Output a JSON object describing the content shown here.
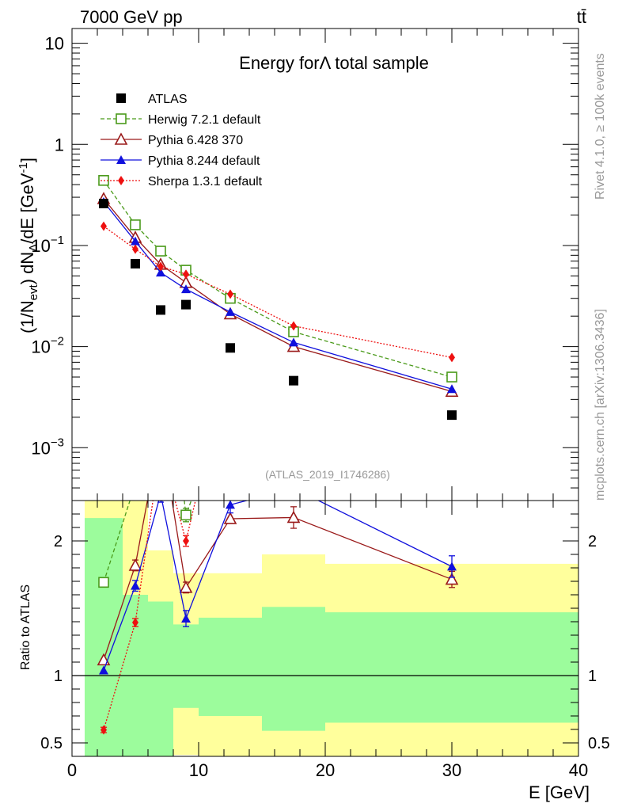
{
  "header": {
    "energy_label": "7000 GeV pp",
    "process_label": "tt̄"
  },
  "side_labels": {
    "rivet": "Rivet 4.1.0, ≥ 100k events",
    "source": "mcplots.cern.ch [arXiv:1306.3436]"
  },
  "chart_data": {
    "type": "scatter",
    "title": "Energy for Λ total sample",
    "title_prefix": "Energy for",
    "title_symbol": "Λ",
    "title_suffix": " total sample",
    "analysis_tag": "(ATLAS_2019_I1746286)",
    "xlabel": "E [GeV]",
    "ylabel_parts": {
      "pre": "(1/N",
      "sub1": "evt",
      "mid": ") dN",
      "sub2": "Λ",
      "post": "/dE [GeV",
      "sup": "-1",
      "end": "]"
    },
    "ratio_ylabel": "Ratio to ATLAS",
    "xlim": [
      0,
      40
    ],
    "ylim": [
      0.0003,
      14
    ],
    "ratio_ylim": [
      0.4,
      2.3
    ],
    "x_ticks": [
      0,
      10,
      20,
      30,
      40
    ],
    "y_ticks": [
      {
        "value": 10,
        "label": "10"
      },
      {
        "value": 1,
        "label": "1"
      },
      {
        "value": 0.1,
        "base": "10",
        "exp": "−1"
      },
      {
        "value": 0.01,
        "base": "10",
        "exp": "−2"
      },
      {
        "value": 0.001,
        "base": "10",
        "exp": "−3"
      }
    ],
    "ratio_ticks": [
      {
        "value": 0.5,
        "label": "0.5"
      },
      {
        "value": 1,
        "label": "1"
      },
      {
        "value": 2,
        "label": "2"
      }
    ],
    "bins": [
      {
        "lo": 1,
        "hi": 4,
        "x": 2.5
      },
      {
        "lo": 4,
        "hi": 6,
        "x": 5
      },
      {
        "lo": 6,
        "hi": 8,
        "x": 7
      },
      {
        "lo": 8,
        "hi": 10,
        "x": 9
      },
      {
        "lo": 10,
        "hi": 15,
        "x": 12.5
      },
      {
        "lo": 15,
        "hi": 20,
        "x": 17.5
      },
      {
        "lo": 20,
        "hi": 40,
        "x": 30
      }
    ],
    "data_series": {
      "name": "ATLAS",
      "values": [
        0.26,
        0.066,
        0.023,
        0.026,
        0.0097,
        0.0046,
        0.0021
      ]
    },
    "series": [
      {
        "name": "Herwig 7.2.1 default",
        "color": "#4a9a1a",
        "marker": "open-square",
        "dash": "5,3",
        "values": [
          0.44,
          0.16,
          0.088,
          0.057,
          0.03,
          0.014,
          0.005
        ],
        "ratio_errors": [
          0,
          0,
          0,
          0.05,
          0,
          0,
          0.05
        ]
      },
      {
        "name": "Pythia 6.428 370",
        "color": "#9a1a1a",
        "marker": "open-triangle",
        "dash": "",
        "values": [
          0.29,
          0.12,
          0.065,
          0.043,
          0.021,
          0.01,
          0.0036
        ],
        "ratio_errors": [
          0,
          0.04,
          0,
          0.04,
          0,
          0.08,
          0.06
        ]
      },
      {
        "name": "Pythia 8.244 default",
        "color": "#1010dd",
        "marker": "filled-triangle",
        "dash": "",
        "values": [
          0.27,
          0.11,
          0.054,
          0.037,
          0.022,
          0.011,
          0.0038
        ],
        "ratio_errors": [
          0,
          0.04,
          0.06,
          0.06,
          0.06,
          0.08,
          0.08
        ]
      },
      {
        "name": "Sherpa 1.3.1 default",
        "color": "#ee1010",
        "marker": "filled-diamond",
        "dash": "2,2",
        "values": [
          0.155,
          0.092,
          0.062,
          0.052,
          0.033,
          0.016,
          0.0078
        ],
        "ratio_errors": [
          0.02,
          0.03,
          0,
          0.04,
          0,
          0,
          0
        ]
      }
    ],
    "band_inner": [
      {
        "lo": 1,
        "hi": 4,
        "low": 0.37,
        "high": 2.17
      },
      {
        "lo": 4,
        "hi": 6,
        "low": 0.37,
        "high": 1.6
      },
      {
        "lo": 6,
        "hi": 8,
        "low": 0.37,
        "high": 1.55
      },
      {
        "lo": 8,
        "hi": 10,
        "low": 0.76,
        "high": 1.38
      },
      {
        "lo": 10,
        "hi": 15,
        "low": 0.7,
        "high": 1.43
      },
      {
        "lo": 15,
        "hi": 20,
        "low": 0.59,
        "high": 1.51
      },
      {
        "lo": 20,
        "hi": 40,
        "low": 0.65,
        "high": 1.47
      }
    ],
    "band_outer": [
      {
        "lo": 1,
        "hi": 4,
        "low": 0.37,
        "high": 2.5
      },
      {
        "lo": 4,
        "hi": 6,
        "low": 0.49,
        "high": 2.5
      },
      {
        "lo": 6,
        "hi": 8,
        "low": 0.55,
        "high": 1.93
      },
      {
        "lo": 8,
        "hi": 10,
        "low": 0.41,
        "high": 1.76
      },
      {
        "lo": 10,
        "hi": 15,
        "low": 0.37,
        "high": 1.76
      },
      {
        "lo": 15,
        "hi": 20,
        "low": 0.37,
        "high": 1.9
      },
      {
        "lo": 20,
        "hi": 40,
        "low": 0.37,
        "high": 1.83
      }
    ],
    "colors": {
      "band_inner": "#9cfc9c",
      "band_outer": "#ffff9c",
      "data": "#000000",
      "tag": "#999999"
    }
  }
}
